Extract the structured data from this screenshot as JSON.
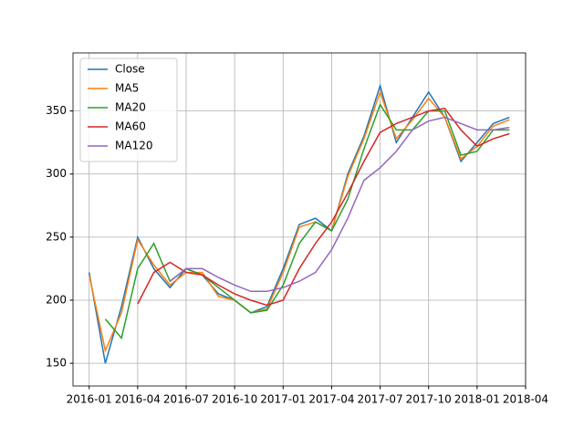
{
  "chart_data": {
    "type": "line",
    "x": [
      "2016-01",
      "2016-02",
      "2016-03",
      "2016-04",
      "2016-05",
      "2016-06",
      "2016-07",
      "2016-08",
      "2016-09",
      "2016-10",
      "2016-11",
      "2016-12",
      "2017-01",
      "2017-02",
      "2017-03",
      "2017-04",
      "2017-05",
      "2017-06",
      "2017-07",
      "2017-08",
      "2017-09",
      "2017-10",
      "2017-11",
      "2017-12",
      "2018-01",
      "2018-02",
      "2018-03"
    ],
    "series": [
      {
        "name": "Close",
        "color": "#1f77b4",
        "values": [
          222,
          150,
          195,
          250,
          225,
          210,
          225,
          220,
          205,
          200,
          190,
          195,
          225,
          260,
          265,
          255,
          300,
          330,
          370,
          325,
          345,
          365,
          345,
          310,
          325,
          340,
          345
        ]
      },
      {
        "name": "MA5",
        "color": "#ff7f0e",
        "values": [
          220,
          160,
          190,
          248,
          228,
          212,
          222,
          222,
          203,
          200,
          190,
          193,
          222,
          258,
          262,
          255,
          298,
          328,
          365,
          328,
          343,
          360,
          345,
          312,
          322,
          338,
          343
        ]
      },
      {
        "name": "MA20",
        "color": "#2ca02c",
        "values": [
          null,
          185,
          170,
          225,
          245,
          215,
          225,
          220,
          210,
          200,
          190,
          192,
          212,
          245,
          262,
          255,
          280,
          320,
          355,
          335,
          335,
          350,
          350,
          315,
          318,
          335,
          335
        ]
      },
      {
        "name": "MA60",
        "color": "#d62728",
        "values": [
          null,
          null,
          null,
          197,
          222,
          230,
          222,
          220,
          212,
          205,
          200,
          196,
          200,
          225,
          245,
          262,
          285,
          310,
          333,
          340,
          345,
          350,
          352,
          335,
          322,
          328,
          332
        ]
      },
      {
        "name": "MA120",
        "color": "#9467bd",
        "values": [
          null,
          null,
          null,
          null,
          null,
          215,
          225,
          225,
          218,
          212,
          207,
          207,
          210,
          215,
          222,
          240,
          265,
          295,
          305,
          318,
          335,
          342,
          345,
          340,
          335,
          335,
          337
        ]
      }
    ],
    "xlim": [
      "2015-12",
      "2018-04"
    ],
    "xticks": [
      "2016-01",
      "2016-04",
      "2016-07",
      "2016-10",
      "2017-01",
      "2017-04",
      "2017-07",
      "2017-10",
      "2018-01",
      "2018-04"
    ],
    "ylim": [
      132,
      396
    ],
    "yticks": [
      150,
      200,
      250,
      300,
      350
    ],
    "grid": true,
    "legend": "upper-left"
  }
}
